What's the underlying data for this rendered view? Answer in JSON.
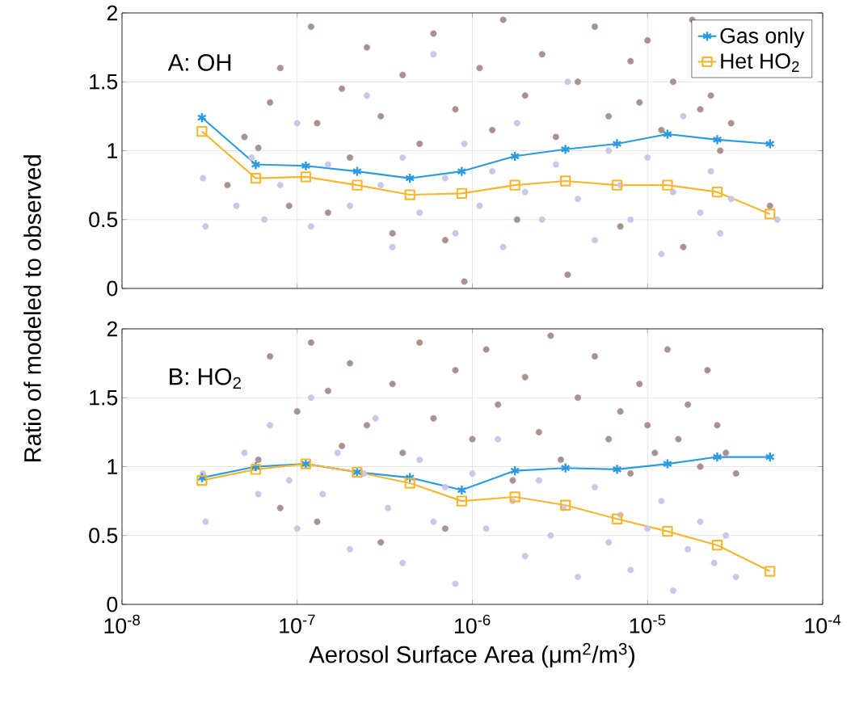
{
  "chart_data": [
    {
      "type": "line",
      "ylabel": "Ratio of modeled to observed",
      "annotations": [
        "A: OH"
      ],
      "log": "x",
      "grid": true,
      "legend": "top right",
      "tick_labels": "y",
      "xlim": [
        1e-08,
        0.0001
      ],
      "xticks": [
        1e-08,
        1e-07,
        1e-06,
        1e-05,
        0.0001
      ],
      "ylim": [
        0,
        2
      ],
      "yticks": [
        0,
        0.5,
        1,
        1.5,
        2
      ],
      "series": [
        {
          "type": "scatter",
          "marker": "circle",
          "color": "#a8938f",
          "x": [
            4e-08,
            5e-08,
            6e-08,
            7e-08,
            8e-08,
            9e-08,
            1.2e-07,
            1.3e-07,
            1.5e-07,
            1.8e-07,
            2e-07,
            2.5e-07,
            3e-07,
            3.5e-07,
            4e-07,
            5e-07,
            6e-07,
            7e-07,
            8e-07,
            9e-07,
            1.1e-06,
            1.3e-06,
            1.5e-06,
            1.8e-06,
            2e-06,
            2.5e-06,
            3e-06,
            3.5e-06,
            4e-06,
            5e-06,
            6e-06,
            7e-06,
            8e-06,
            9e-06,
            1e-05,
            1.2e-05,
            1.4e-05,
            1.6e-05,
            1.8e-05,
            2e-05,
            2.3e-05,
            2.6e-05,
            3e-05,
            5e-05
          ],
          "values": [
            0.75,
            1.1,
            1.02,
            1.35,
            1.6,
            0.6,
            1.9,
            1.2,
            0.55,
            1.45,
            0.95,
            1.75,
            1.25,
            0.4,
            1.55,
            1.05,
            1.85,
            0.35,
            1.3,
            0.05,
            1.6,
            1.15,
            1.95,
            0.5,
            1.4,
            1.7,
            1.1,
            0.1,
            1.5,
            1.9,
            1.25,
            0.45,
            1.65,
            1.35,
            1.8,
            1.15,
            1.5,
            0.3,
            1.95,
            1.3,
            1.4,
            1.0,
            1.2,
            0.6
          ]
        },
        {
          "type": "scatter",
          "marker": "circle",
          "color": "#c9c8e8",
          "x": [
            2.9e-08,
            3e-08,
            4.5e-08,
            5.5e-08,
            6.5e-08,
            8e-08,
            1e-07,
            1.2e-07,
            1.5e-07,
            2e-07,
            2.5e-07,
            3e-07,
            3.5e-07,
            4e-07,
            5e-07,
            6e-07,
            7e-07,
            8e-07,
            9e-07,
            1.1e-06,
            1.3e-06,
            1.5e-06,
            1.8e-06,
            2e-06,
            2.5e-06,
            3e-06,
            3.5e-06,
            4e-06,
            5e-06,
            6e-06,
            7e-06,
            8e-06,
            1e-05,
            1.2e-05,
            1.4e-05,
            1.6e-05,
            2e-05,
            2.3e-05,
            2.6e-05,
            3e-05,
            5.5e-05
          ],
          "values": [
            0.8,
            0.45,
            0.6,
            0.95,
            0.5,
            0.75,
            1.2,
            0.45,
            0.9,
            0.6,
            1.4,
            0.75,
            0.3,
            0.95,
            0.55,
            1.7,
            0.8,
            0.4,
            1.05,
            0.6,
            0.85,
            0.3,
            1.2,
            0.7,
            0.5,
            0.9,
            1.5,
            0.65,
            0.35,
            1.0,
            0.75,
            0.5,
            0.95,
            0.25,
            0.7,
            1.25,
            0.55,
            0.85,
            0.4,
            0.65,
            0.5
          ]
        },
        {
          "name": "Gas only",
          "marker": "cross",
          "color": "#2b9ae0",
          "x": [
            2.86e-08,
            5.8e-08,
            1.12e-07,
            2.2e-07,
            4.4e-07,
            8.7e-07,
            1.75e-06,
            3.4e-06,
            6.7e-06,
            1.3e-05,
            2.5e-05,
            5e-05
          ],
          "values": [
            1.24,
            0.9,
            0.89,
            0.85,
            0.8,
            0.85,
            0.96,
            1.01,
            1.05,
            1.12,
            1.08,
            1.05
          ]
        },
        {
          "name": "Het HO$_{2}$",
          "marker": "square",
          "color": "#f5b731",
          "x": [
            2.86e-08,
            5.8e-08,
            1.12e-07,
            2.2e-07,
            4.4e-07,
            8.7e-07,
            1.75e-06,
            3.4e-06,
            6.7e-06,
            1.3e-05,
            2.5e-05,
            5e-05
          ],
          "values": [
            1.14,
            0.8,
            0.81,
            0.75,
            0.68,
            0.69,
            0.75,
            0.78,
            0.75,
            0.75,
            0.7,
            0.54
          ]
        }
      ]
    },
    {
      "type": "line",
      "xlabel": "Aerosol Surface Area (μm$^{2}$/m$^{3}$)",
      "annotations": [
        "B: HO$_{2}$"
      ],
      "log": "x",
      "grid": true,
      "xlim": [
        1e-08,
        0.0001
      ],
      "xticks": [
        {
          "value": 1e-08,
          "label": "10$^{-8}$"
        },
        {
          "value": 1e-07,
          "label": "10$^{-7}$"
        },
        {
          "value": 1e-06,
          "label": "10$^{-6}$"
        },
        {
          "value": 1e-05,
          "label": "10$^{-5}$"
        },
        {
          "value": 0.0001,
          "label": "10$^{-4}$"
        }
      ],
      "ylim": [
        0,
        2
      ],
      "yticks": [
        0,
        0.5,
        1,
        1.5,
        2
      ],
      "series": [
        {
          "type": "scatter",
          "marker": "circle",
          "color": "#a8938f",
          "x": [
            6e-08,
            7e-08,
            8e-08,
            1e-07,
            1.2e-07,
            1.3e-07,
            1.5e-07,
            1.8e-07,
            2e-07,
            2.5e-07,
            3e-07,
            3.5e-07,
            4e-07,
            5e-07,
            6e-07,
            7e-07,
            8e-07,
            1e-06,
            1.2e-06,
            1.4e-06,
            1.7e-06,
            2e-06,
            2.4e-06,
            2.8e-06,
            3.2e-06,
            4e-06,
            5e-06,
            6e-06,
            7e-06,
            8e-06,
            9e-06,
            1e-05,
            1.1e-05,
            1.3e-05,
            1.5e-05,
            1.7e-05,
            2e-05,
            2.2e-05,
            2.5e-05,
            2.8e-05,
            3.2e-05
          ],
          "values": [
            1.05,
            1.8,
            0.7,
            1.4,
            1.9,
            0.6,
            1.55,
            1.15,
            1.75,
            1.3,
            0.45,
            1.6,
            1.1,
            1.9,
            1.35,
            0.55,
            1.7,
            1.2,
            1.85,
            1.45,
            0.9,
            1.65,
            1.25,
            1.95,
            1.05,
            1.5,
            1.8,
            1.2,
            1.4,
            0.95,
            1.6,
            1.3,
            1.1,
            1.85,
            1.2,
            1.45,
            1.0,
            1.7,
            1.3,
            1.1,
            0.95
          ]
        },
        {
          "type": "scatter",
          "marker": "circle",
          "color": "#c9c8e8",
          "x": [
            2.9e-08,
            3e-08,
            5e-08,
            6e-08,
            7e-08,
            9e-08,
            1e-07,
            1.2e-07,
            1.4e-07,
            1.7e-07,
            2e-07,
            2.4e-07,
            2.8e-07,
            3.3e-07,
            4e-07,
            5e-07,
            6e-07,
            7e-07,
            8e-07,
            1e-06,
            1.2e-06,
            1.4e-06,
            1.7e-06,
            2e-06,
            2.4e-06,
            2.8e-06,
            3.3e-06,
            4e-06,
            5e-06,
            6e-06,
            7e-06,
            8e-06,
            1e-05,
            1.2e-05,
            1.4e-05,
            1.7e-05,
            2e-05,
            2.4e-05,
            2.8e-05,
            3.2e-05
          ],
          "values": [
            0.95,
            0.6,
            1.1,
            0.8,
            1.3,
            0.9,
            0.55,
            1.5,
            0.8,
            1.1,
            0.4,
            0.95,
            1.35,
            0.7,
            0.3,
            1.05,
            0.6,
            0.85,
            0.15,
            0.95,
            0.55,
            1.2,
            0.75,
            0.35,
            0.9,
            0.5,
            0.7,
            0.2,
            0.85,
            0.45,
            0.65,
            0.25,
            0.55,
            0.75,
            0.1,
            0.4,
            0.6,
            0.3,
            0.5,
            0.2
          ]
        },
        {
          "marker": "cross",
          "color": "#2b9ae0",
          "x": [
            2.86e-08,
            5.8e-08,
            1.12e-07,
            2.2e-07,
            4.4e-07,
            8.7e-07,
            1.75e-06,
            3.4e-06,
            6.7e-06,
            1.3e-05,
            2.5e-05,
            5e-05
          ],
          "values": [
            0.92,
            1.0,
            1.02,
            0.96,
            0.92,
            0.83,
            0.97,
            0.99,
            0.98,
            1.02,
            1.07,
            1.07
          ]
        },
        {
          "marker": "square",
          "color": "#f5b731",
          "x": [
            2.86e-08,
            5.8e-08,
            1.12e-07,
            2.2e-07,
            4.4e-07,
            8.7e-07,
            1.75e-06,
            3.4e-06,
            6.7e-06,
            1.3e-05,
            2.5e-05,
            5e-05
          ],
          "values": [
            0.9,
            0.98,
            1.02,
            0.96,
            0.88,
            0.75,
            0.78,
            0.72,
            0.62,
            0.53,
            0.43,
            0.24
          ]
        }
      ]
    }
  ]
}
